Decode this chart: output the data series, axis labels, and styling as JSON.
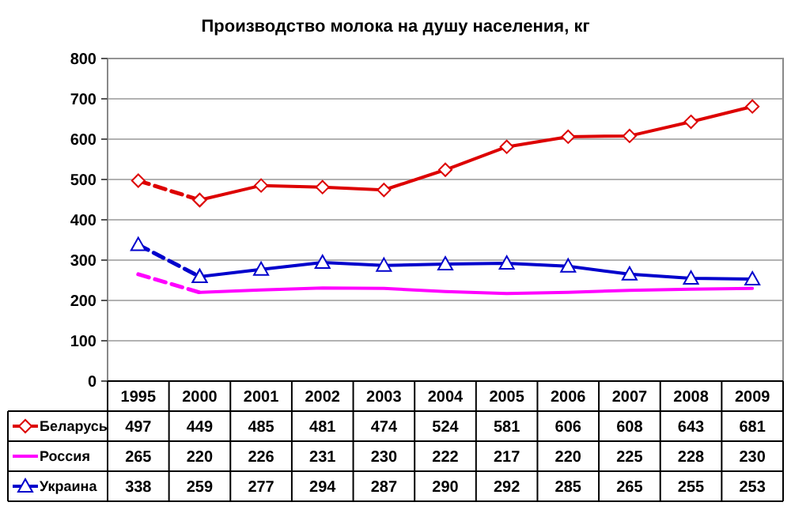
{
  "chart_data": {
    "type": "line",
    "title": "Производство молока на душу населения, кг",
    "categories": [
      "1995",
      "2000",
      "2001",
      "2002",
      "2003",
      "2004",
      "2005",
      "2006",
      "2007",
      "2008",
      "2009"
    ],
    "series": [
      {
        "name": "Беларусь",
        "color": "#dd0000",
        "marker": "diamond",
        "line_style": "solid",
        "values": [
          null,
          449,
          485,
          481,
          474,
          524,
          581,
          606,
          608,
          643,
          681
        ],
        "value_labels": [
          "497",
          "449",
          "485",
          "481",
          "474",
          "524",
          "581",
          "606",
          "608",
          "643",
          "681"
        ]
      },
      {
        "name": "Россия",
        "color": "#ff00ff",
        "marker": "none",
        "line_style": "solid",
        "values": [
          null,
          220,
          226,
          231,
          230,
          222,
          217,
          220,
          225,
          228,
          230
        ],
        "value_labels": [
          "265",
          "220",
          "226",
          "231",
          "230",
          "222",
          "217",
          "220",
          "225",
          "228",
          "230"
        ]
      },
      {
        "name": "Украина",
        "color": "#0000cc",
        "marker": "triangle",
        "line_style": "solid",
        "values": [
          null,
          259,
          277,
          294,
          287,
          290,
          292,
          285,
          265,
          255,
          253
        ],
        "value_labels": [
          "338",
          "259",
          "277",
          "294",
          "287",
          "290",
          "292",
          "285",
          "265",
          "255",
          "253"
        ]
      },
      {
        "color": "#dd0000",
        "marker": "diamond",
        "line_style": "dashed",
        "values": [
          497,
          449,
          null,
          null,
          null,
          null,
          null,
          null,
          null,
          null,
          null
        ]
      },
      {
        "color": "#ff00ff",
        "marker": "none",
        "line_style": "dashed",
        "values": [
          265,
          220,
          null,
          null,
          null,
          null,
          null,
          null,
          null,
          null,
          null
        ]
      },
      {
        "color": "#0000cc",
        "marker": "triangle",
        "line_style": "dashed",
        "values": [
          338,
          259,
          null,
          null,
          null,
          null,
          null,
          null,
          null,
          null,
          null
        ]
      }
    ],
    "ylim": [
      0,
      800
    ],
    "yticks": [
      0,
      100,
      200,
      300,
      400,
      500,
      600,
      700,
      800
    ],
    "grid": "y",
    "legend": "bottom"
  }
}
